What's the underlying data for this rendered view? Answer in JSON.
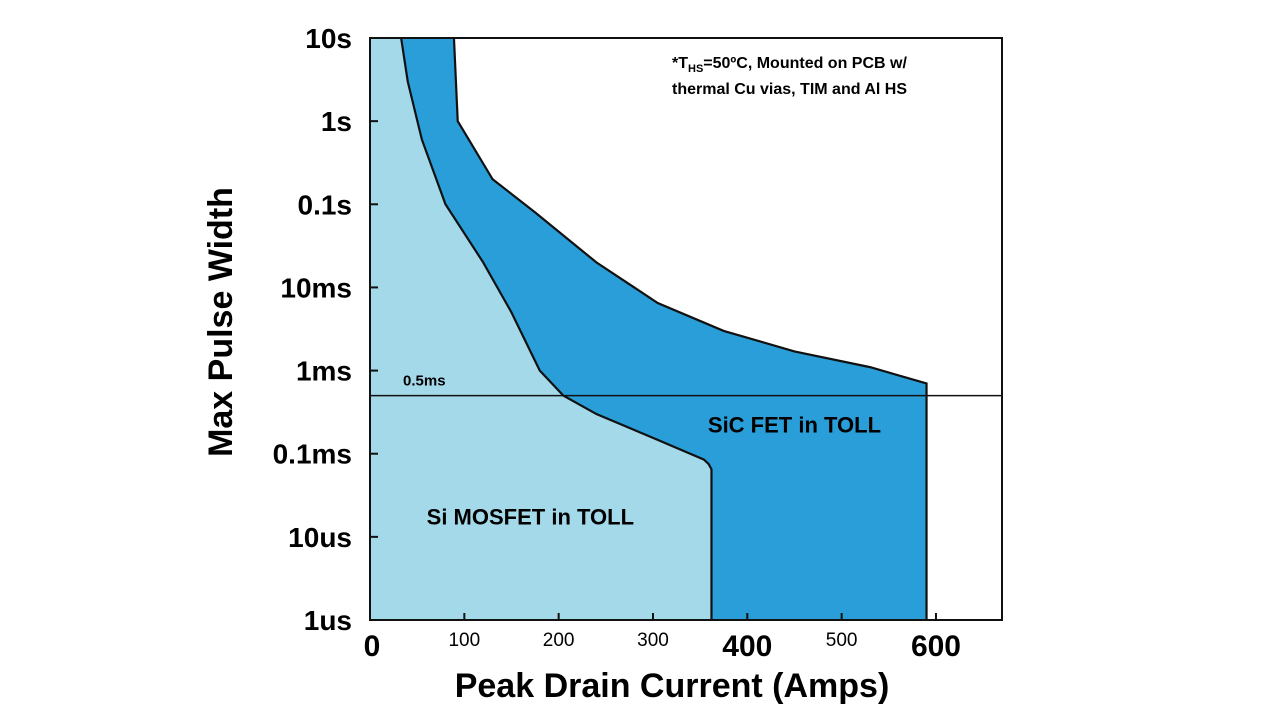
{
  "chart_data": {
    "type": "area",
    "xlabel": "Peak Drain Current (Amps)",
    "ylabel": "Max Pulse Width",
    "x_range": [
      0,
      670
    ],
    "y_scale": "log",
    "y_range_seconds": [
      1e-06,
      10
    ],
    "x_ticks": [
      {
        "value": 0,
        "label": "0",
        "emphasis": true
      },
      {
        "value": 100,
        "label": "100",
        "emphasis": false
      },
      {
        "value": 200,
        "label": "200",
        "emphasis": false
      },
      {
        "value": 300,
        "label": "300",
        "emphasis": false
      },
      {
        "value": 400,
        "label": "400",
        "emphasis": true
      },
      {
        "value": 500,
        "label": "500",
        "emphasis": false
      },
      {
        "value": 600,
        "label": "600",
        "emphasis": true
      }
    ],
    "y_ticks": [
      {
        "value": 10,
        "label": "10s"
      },
      {
        "value": 1,
        "label": "1s"
      },
      {
        "value": 0.1,
        "label": "0.1s"
      },
      {
        "value": 0.01,
        "label": "10ms"
      },
      {
        "value": 0.001,
        "label": "1ms"
      },
      {
        "value": 0.0001,
        "label": "0.1ms"
      },
      {
        "value": 1e-05,
        "label": "10us"
      },
      {
        "value": 1e-06,
        "label": "1us"
      }
    ],
    "annotation": {
      "line1_prefix": "*T",
      "line1_subscript": "HS",
      "line1_suffix": "=50ºC, Mounted on PCB w/",
      "line2": "thermal Cu vias, TIM and Al HS"
    },
    "reference_line": {
      "y": 0.0005,
      "label": "0.5ms"
    },
    "series": [
      {
        "name": "SiC FET in TOLL",
        "color": "#2a9ed8",
        "boundary": [
          [
            89,
            10
          ],
          [
            93,
            1
          ],
          [
            130,
            0.2
          ],
          [
            175,
            0.08
          ],
          [
            240,
            0.02
          ],
          [
            305,
            0.0065
          ],
          [
            375,
            0.003
          ],
          [
            450,
            0.0017
          ],
          [
            530,
            0.0011
          ],
          [
            590,
            0.0007
          ],
          [
            590,
            1e-06
          ]
        ]
      },
      {
        "name": "Si MOSFET in TOLL",
        "color": "#a4d9ea",
        "boundary": [
          [
            33,
            10
          ],
          [
            40,
            3
          ],
          [
            55,
            0.6
          ],
          [
            80,
            0.1
          ],
          [
            120,
            0.02
          ],
          [
            150,
            0.005
          ],
          [
            180,
            0.001
          ],
          [
            205,
            0.0005
          ],
          [
            240,
            0.0003
          ],
          [
            300,
            0.000155
          ],
          [
            354,
            8.5e-05
          ],
          [
            359,
            7.5e-05
          ],
          [
            362,
            6.5e-05
          ],
          [
            362,
            1e-06
          ]
        ]
      }
    ]
  }
}
